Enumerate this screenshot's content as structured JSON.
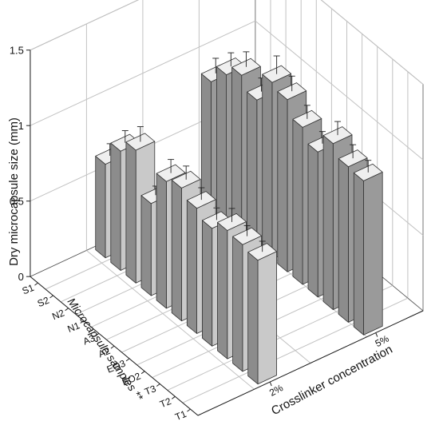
{
  "chart_data": {
    "type": "bar",
    "subtype": "3d-grouped-bar",
    "title": "",
    "zlabel": "Dry microcapsule size (mm)",
    "xlabel": "Crosslinker concentration",
    "ylabel": "Microcapsule samples **",
    "zlim": [
      0,
      1.5
    ],
    "zticks": [
      "0",
      "0.5",
      "1",
      "1.5"
    ],
    "grid": true,
    "error_bars": true,
    "crosslinker_levels": [
      "2%",
      "5%"
    ],
    "samples": [
      "T1",
      "T2",
      "T3",
      "EO2",
      "EO3",
      "A2",
      "A3",
      "N1",
      "N2",
      "S2",
      "S1"
    ],
    "series": [
      {
        "name": "2%",
        "values": [
          0.82,
          0.84,
          0.85,
          0.78,
          0.83,
          0.88,
          0.84,
          0.61,
          0.88,
          0.79,
          0.62
        ],
        "errors": [
          0.07,
          0.07,
          0.09,
          0.08,
          0.08,
          0.09,
          0.09,
          0.06,
          0.1,
          0.08,
          0.08
        ]
      },
      {
        "name": "5%",
        "values": [
          1.02,
          1.03,
          1.1,
          0.96,
          1.04,
          1.14,
          1.17,
          0.97,
          1.05,
          0.97,
          0.84
        ],
        "errors": [
          0.08,
          0.09,
          0.09,
          0.08,
          0.09,
          0.1,
          0.12,
          0.09,
          0.1,
          0.09,
          0.1
        ]
      }
    ],
    "colors": {
      "front_face": "#c9c9c9",
      "top_face": "#efefef",
      "side_face": "#8c8c8c",
      "back_bar_face": "#9a9a9a",
      "edge": "#333333",
      "grid": "#c2c2c2"
    }
  }
}
